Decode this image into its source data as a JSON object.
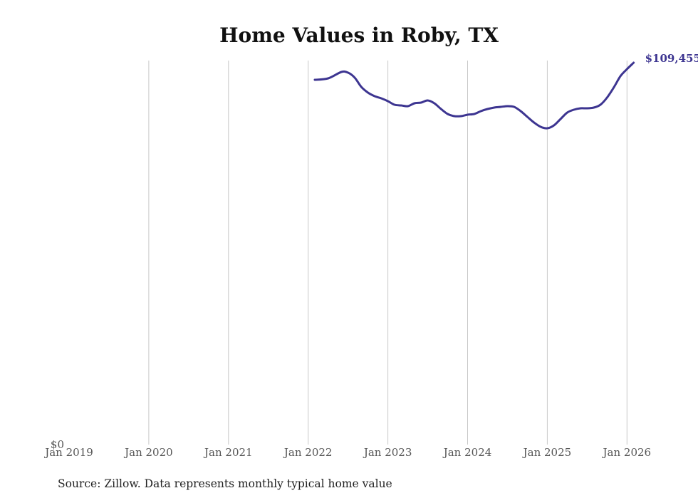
{
  "chart_data": {
    "type": "line",
    "title": "Home Values in Roby, TX",
    "xlabel": "",
    "ylabel": "",
    "source": "Source: Zillow. Data represents monthly typical home value",
    "x_ticks": [
      "Jan 2019",
      "Jan 2020",
      "Jan 2021",
      "Jan 2022",
      "Jan 2023",
      "Jan 2024",
      "Jan 2025",
      "Jan 2026"
    ],
    "y_tick_label": "$0",
    "ylim": [
      0,
      109455
    ],
    "xlim": [
      "2019-01",
      "2026-02"
    ],
    "grid": "vertical",
    "end_label": "$109,455",
    "series_color": "#3d3591",
    "series": [
      {
        "name": "Typical home value",
        "x": [
          "2022-02",
          "2022-04",
          "2022-06",
          "2022-07",
          "2022-08",
          "2022-09",
          "2022-10",
          "2022-11",
          "2022-12",
          "2023-01",
          "2023-02",
          "2023-03",
          "2023-04",
          "2023-05",
          "2023-06",
          "2023-07",
          "2023-08",
          "2023-09",
          "2023-10",
          "2023-11",
          "2023-12",
          "2024-01",
          "2024-02",
          "2024-03",
          "2024-04",
          "2024-05",
          "2024-06",
          "2024-07",
          "2024-08",
          "2024-09",
          "2024-10",
          "2024-11",
          "2024-12",
          "2025-01",
          "2025-02",
          "2025-03",
          "2025-04",
          "2025-05",
          "2025-06",
          "2025-07",
          "2025-08",
          "2025-09",
          "2025-10",
          "2025-11",
          "2025-12",
          "2026-01",
          "2026-02"
        ],
        "values": [
          104550,
          104960,
          106800,
          106600,
          105170,
          102510,
          100880,
          99860,
          99240,
          98430,
          97410,
          97200,
          97000,
          97820,
          98020,
          98630,
          97820,
          96180,
          94750,
          94140,
          94140,
          94550,
          94750,
          95570,
          96180,
          96590,
          96790,
          97000,
          96790,
          95570,
          93930,
          92300,
          91070,
          90660,
          91480,
          93320,
          95160,
          95980,
          96380,
          96380,
          96590,
          97410,
          99450,
          102310,
          105570,
          107620,
          109455
        ]
      }
    ]
  }
}
